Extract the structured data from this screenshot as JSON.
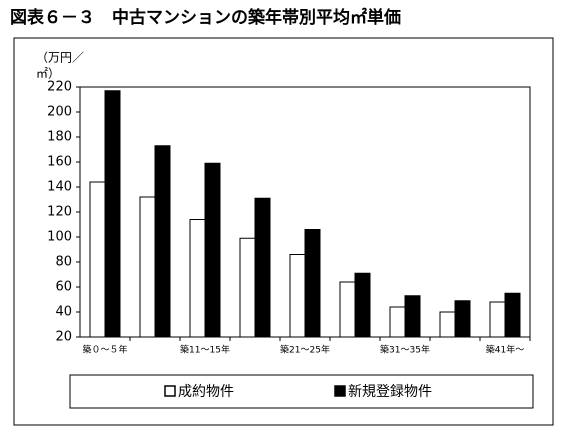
{
  "chart_data": {
    "type": "bar",
    "title": "図表６－３　中古マンションの築年帯別平均㎡単価",
    "y_label": [
      "（万円／",
      "㎡）"
    ],
    "categories": [
      "築０～５年",
      null,
      "築11～15年",
      null,
      "築21～25年",
      null,
      "築31～35年",
      null,
      "築41年～"
    ],
    "series": [
      {
        "name": "成約物件",
        "color": "#ffffff",
        "values": [
          144,
          132,
          114,
          99,
          86,
          64,
          44,
          40,
          48
        ]
      },
      {
        "name": "新規登録物件",
        "color": "#000000",
        "values": [
          217,
          173,
          159,
          131,
          106,
          71,
          53,
          49,
          55
        ]
      }
    ],
    "ylim": [
      20,
      220
    ],
    "yticks": [
      20,
      40,
      60,
      80,
      100,
      120,
      140,
      160,
      180,
      200,
      220
    ],
    "legend": "bottom"
  }
}
